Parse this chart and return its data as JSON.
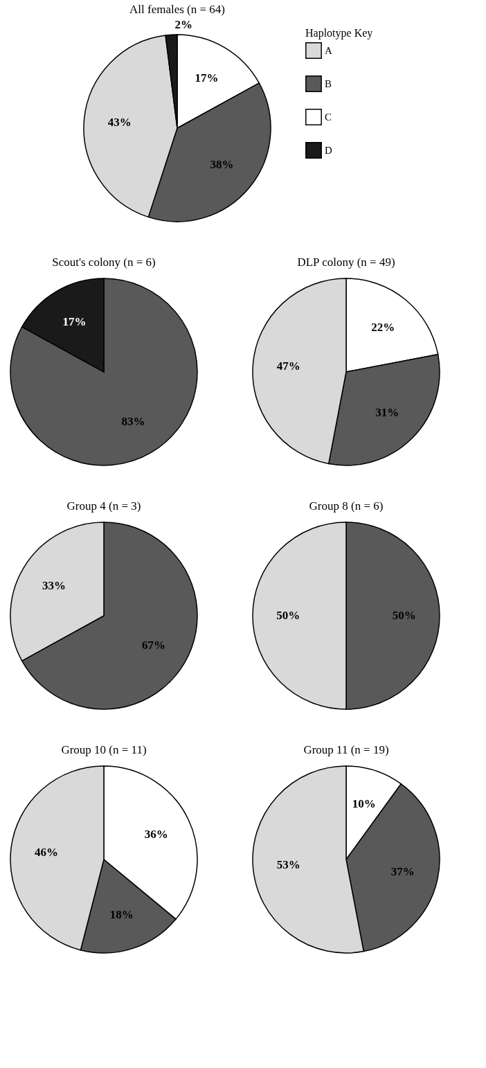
{
  "chart_data": [
    {
      "type": "pie",
      "title": "All females  (n = 64)",
      "categories": [
        "C",
        "B",
        "A",
        "D"
      ],
      "values": [
        17,
        38,
        43,
        2
      ],
      "colors": [
        "#ffffff",
        "#595959",
        "#d9d9d9",
        "#1a1a1a"
      ],
      "value_labels": [
        "17%",
        "38%",
        "43%",
        "2%"
      ],
      "legend": "right",
      "legend_title": "Haplotype Key"
    },
    {
      "type": "pie",
      "title": "Scout's colony (n = 6)",
      "categories": [
        null,
        null
      ],
      "values": [
        83,
        17
      ],
      "colors": [
        "#595959",
        "#1a1a1a"
      ],
      "value_labels": [
        "83%",
        "17%"
      ]
    },
    {
      "type": "pie",
      "title": "DLP colony (n = 49)",
      "categories": [
        null,
        null,
        null
      ],
      "values": [
        22,
        31,
        47
      ],
      "colors": [
        "#ffffff",
        "#595959",
        "#d9d9d9"
      ],
      "value_labels": [
        "22%",
        "31%",
        "47%"
      ]
    },
    {
      "type": "pie",
      "title": "Group 4 (n = 3)",
      "categories": [
        null,
        null
      ],
      "values": [
        67,
        33
      ],
      "colors": [
        "#595959",
        "#d9d9d9"
      ],
      "value_labels": [
        "67%",
        "33%"
      ]
    },
    {
      "type": "pie",
      "title": "Group 8 (n = 6)",
      "categories": [
        null,
        null
      ],
      "values": [
        50,
        50
      ],
      "colors": [
        "#595959",
        "#d9d9d9"
      ],
      "value_labels": [
        "50%",
        "50%"
      ]
    },
    {
      "type": "pie",
      "title": "Group 10 (n = 11)",
      "categories": [
        null,
        null,
        null
      ],
      "values": [
        36,
        18,
        46
      ],
      "colors": [
        "#ffffff",
        "#595959",
        "#d9d9d9"
      ],
      "value_labels": [
        "36%",
        "18%",
        "46%"
      ]
    },
    {
      "type": "pie",
      "title": "Group 11 (n = 19)",
      "categories": [
        null,
        null,
        null
      ],
      "values": [
        10,
        37,
        53
      ],
      "colors": [
        "#ffffff",
        "#595959",
        "#d9d9d9"
      ],
      "value_labels": [
        "10%",
        "37%",
        "53%"
      ]
    }
  ]
}
